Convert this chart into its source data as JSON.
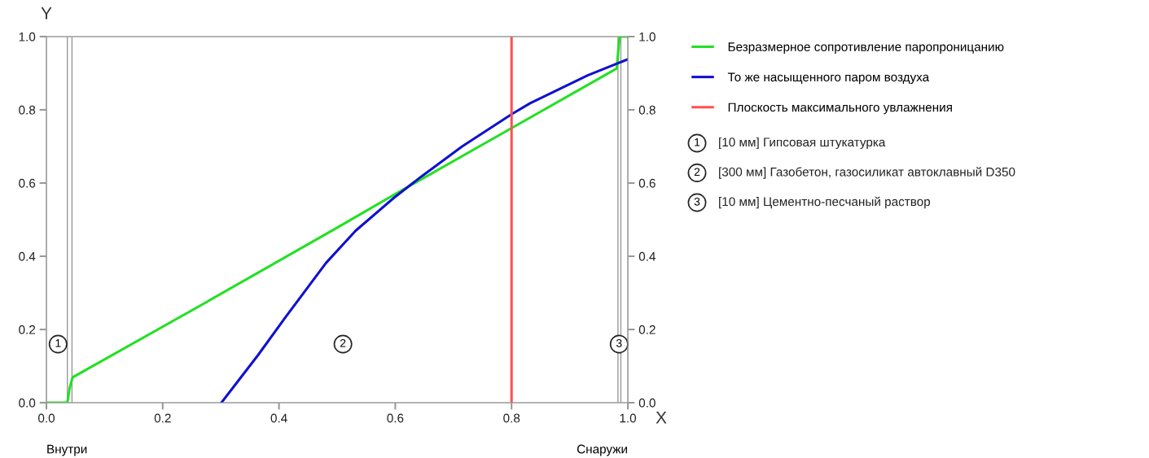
{
  "chart_data": {
    "type": "line",
    "xlabel": "X",
    "ylabel": "Y",
    "xlim": [
      0,
      1
    ],
    "ylim": [
      0,
      1
    ],
    "y2lim": [
      0,
      1
    ],
    "xticks": [
      {
        "value": 0,
        "label": "0.0"
      },
      0.2,
      0.4,
      0.6,
      0.8,
      {
        "value": 1,
        "label": "1.0"
      }
    ],
    "yticks": [
      {
        "value": 0,
        "label": "0.0"
      },
      0.2,
      0.4,
      0.6,
      0.8,
      {
        "value": 1,
        "label": "1.0"
      }
    ],
    "y2ticks": [
      {
        "value": 0,
        "label": "0.0"
      },
      0.2,
      0.4,
      0.6,
      0.8,
      {
        "value": 1,
        "label": "1.0"
      }
    ],
    "grid": false,
    "legend": "right",
    "marker": "none",
    "line_style": "solid",
    "series": [
      {
        "name": "Безразмерное сопротивление паропроницанию",
        "color": "#22e022",
        "x": [
          0,
          0.036,
          0.04,
          0.045,
          0.27,
          0.5,
          0.6,
          0.8,
          0.981,
          0.984,
          0.986,
          1.0
        ],
        "values": [
          0,
          0,
          0.04,
          0.069,
          0.27,
          0.478,
          0.57,
          0.75,
          0.913,
          0.97,
          1.0,
          1.0
        ]
      },
      {
        "name": "То же насыщенного паром воздуха",
        "color": "#1010d0",
        "x": [
          0.301,
          0.364,
          0.411,
          0.481,
          0.532,
          0.598,
          0.645,
          0.715,
          0.801,
          0.832,
          0.931,
          1.0
        ],
        "values": [
          0,
          0.13,
          0.233,
          0.382,
          0.47,
          0.56,
          0.618,
          0.7,
          0.789,
          0.818,
          0.894,
          0.938
        ]
      },
      {
        "name": "Плоскость максимального увлажнения",
        "color": "#ff5050",
        "x": [
          0.8,
          0.8
        ],
        "values": [
          0,
          1
        ]
      }
    ],
    "ref_lines": [
      {
        "axis": "x",
        "value": 0.036,
        "color": "#999999"
      },
      {
        "axis": "x",
        "value": 0.044,
        "color": "#999999"
      },
      {
        "axis": "x",
        "value": 0.983,
        "color": "#999999"
      },
      {
        "axis": "x",
        "value": 0.988,
        "color": "#999999"
      }
    ],
    "annotations": [
      {
        "text": "1",
        "x": 0.02,
        "y": 0.16
      },
      {
        "text": "2",
        "x": 0.51,
        "y": 0.16
      },
      {
        "text": "3",
        "x": 0.985,
        "y": 0.16
      },
      "[10 мм] Гипсовая штукатурка",
      "[300 мм] Газобетон, газосиликат автоклавный D350",
      "[10 мм] Цементно-песчаный раствор",
      "Внутри",
      "Снаружи"
    ]
  }
}
